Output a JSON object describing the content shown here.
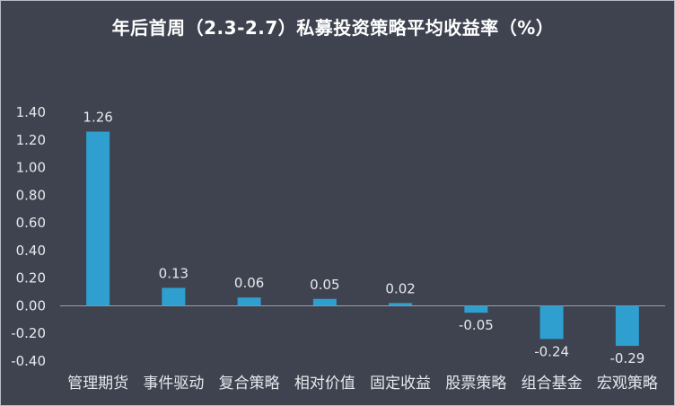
{
  "chart_data": {
    "type": "bar",
    "title": "年后首周（2.3-2.7）私募投资策略平均收益率（%）",
    "categories": [
      "管理期货",
      "事件驱动",
      "复合策略",
      "相对价值",
      "固定收益",
      "股票策略",
      "组合基金",
      "宏观策略"
    ],
    "values": [
      1.26,
      0.13,
      0.06,
      0.05,
      0.02,
      -0.05,
      -0.24,
      -0.29
    ],
    "value_labels": [
      "1.26",
      "0.13",
      "0.06",
      "0.05",
      "0.02",
      "-0.05",
      "-0.24",
      "-0.29"
    ],
    "y_ticks": [
      "1.40",
      "1.20",
      "1.00",
      "0.80",
      "0.60",
      "0.40",
      "0.20",
      "0.00",
      "-0.20",
      "-0.40"
    ],
    "ylim": [
      -0.4,
      1.4
    ],
    "xlabel": "",
    "ylabel": "",
    "grid": false,
    "legend": "none",
    "colors": {
      "bar": "#2e9fcf",
      "background": "#3f4350",
      "text": "#e6e8ec",
      "axis": "#9aa0ab"
    }
  }
}
